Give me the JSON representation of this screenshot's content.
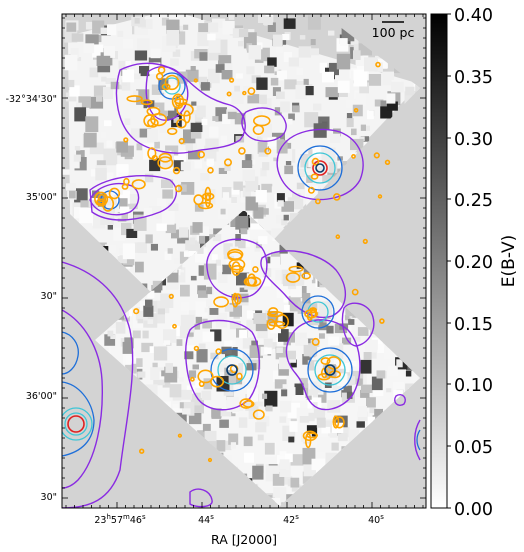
{
  "figure": {
    "scale_bar_label": "100 pc",
    "x_axis": {
      "label": "RA [J2000]",
      "ticks": [
        {
          "main": "23",
          "sup1": "h",
          "mid": "57",
          "sup2": "m",
          "tail": "46",
          "sup3": "s"
        },
        {
          "main": "44",
          "sup1": "s"
        },
        {
          "main": "42",
          "sup1": "s"
        },
        {
          "main": "40",
          "sup1": "s"
        }
      ]
    },
    "y_axis": {
      "ticks": [
        "-32°34'30\"",
        "35'00\"",
        "30\"",
        "36'00\"",
        "30\""
      ]
    },
    "colorbar": {
      "label": "E(B-V)",
      "ticks": [
        "0.40",
        "0.35",
        "0.30",
        "0.25",
        "0.20",
        "0.15",
        "0.10",
        "0.05",
        "0.00"
      ],
      "gradient_top": "#000000",
      "gradient_bottom": "#ffffff"
    },
    "colors": {
      "background": "#d3d3d3",
      "contour_purple": "#8a2be2",
      "contour_blue": "#1e6fd9",
      "contour_cyan": "#3fc6d6",
      "contour_red": "#e02020",
      "contour_orange": "#ffa500"
    }
  }
}
